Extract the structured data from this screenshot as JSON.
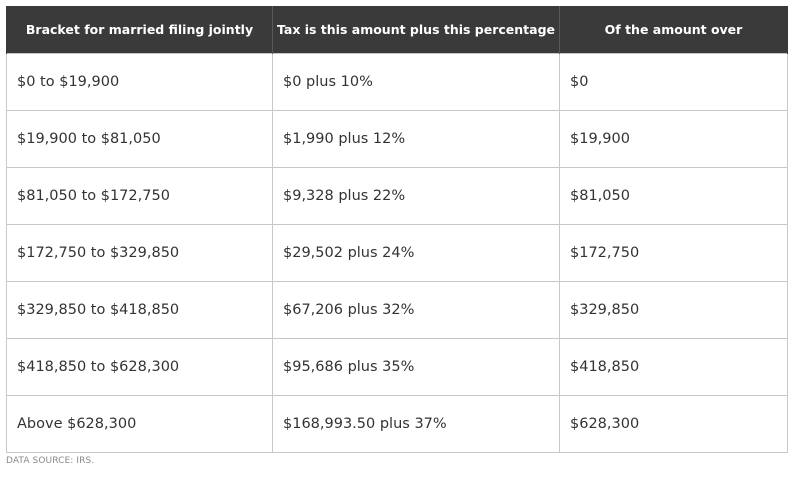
{
  "table": {
    "headers": [
      "Bracket for married filing jointly",
      "Tax is this amount plus this percentage",
      "Of the amount over"
    ],
    "rows": [
      [
        "$0 to $19,900",
        "$0 plus 10%",
        "$0"
      ],
      [
        "$19,900 to $81,050",
        "$1,990 plus 12%",
        "$19,900"
      ],
      [
        "$81,050 to $172,750",
        "$9,328 plus 22%",
        "$81,050"
      ],
      [
        "$172,750 to $329,850",
        "$29,502 plus 24%",
        "$172,750"
      ],
      [
        "$329,850 to $418,850",
        "$67,206 plus 32%",
        "$329,850"
      ],
      [
        "$418,850 to $628,300",
        "$95,686 plus 35%",
        "$418,850"
      ],
      [
        "Above $628,300",
        "$168,993.50 plus 37%",
        "$628,300"
      ]
    ]
  },
  "source": "DATA SOURCE: IRS."
}
